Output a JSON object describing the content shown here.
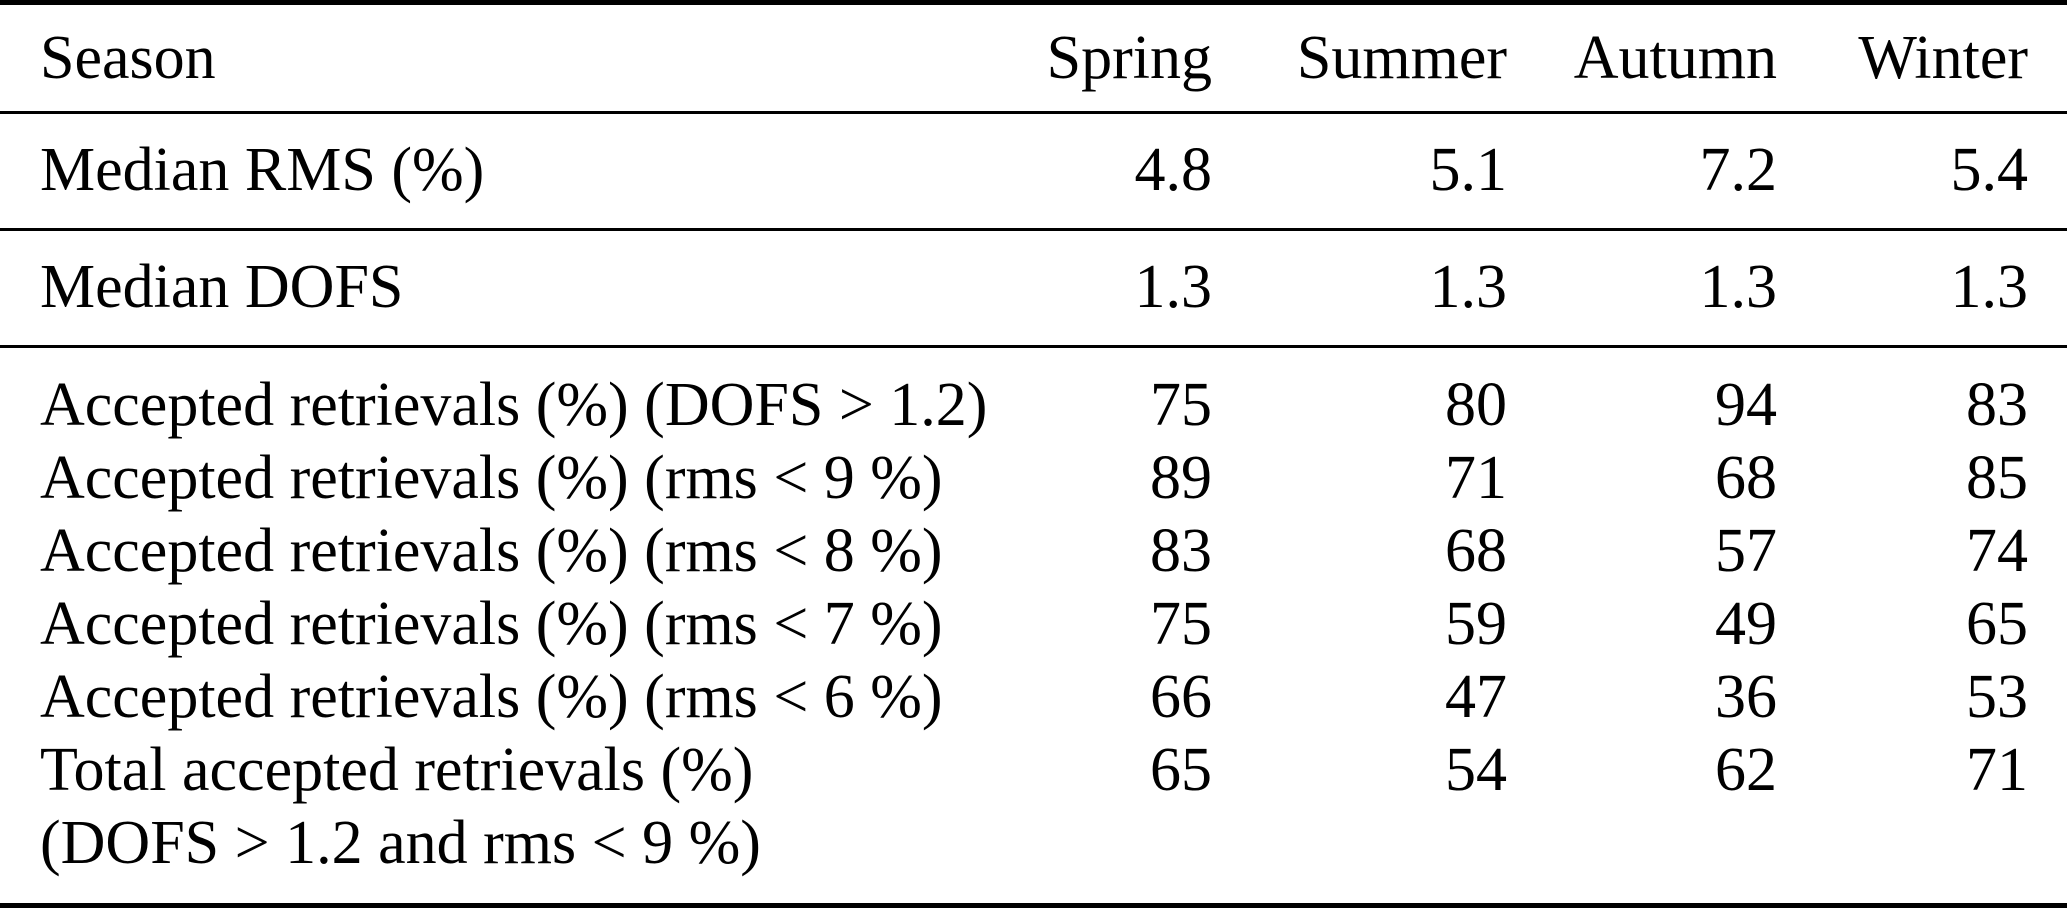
{
  "page": {
    "background_color": "#ffffff",
    "text_color": "#000000",
    "rule_color": "#000000"
  },
  "table": {
    "columns": [
      "Season",
      "Spring",
      "Summer",
      "Autumn",
      "Winter"
    ],
    "sections": [
      {
        "name": "median-rms",
        "rows": [
          {
            "label": "Median RMS (%)",
            "values": [
              "4.8",
              "5.1",
              "7.2",
              "5.4"
            ]
          }
        ]
      },
      {
        "name": "median-dofs",
        "rows": [
          {
            "label": "Median DOFS",
            "values": [
              "1.3",
              "1.3",
              "1.3",
              "1.3"
            ]
          }
        ]
      },
      {
        "name": "accepted-retrievals",
        "rows": [
          {
            "label": "Accepted retrievals (%) (DOFS > 1.2)",
            "values": [
              "75",
              "80",
              "94",
              "83"
            ]
          },
          {
            "label": "Accepted retrievals (%) (rms < 9 %)",
            "values": [
              "89",
              "71",
              "68",
              "85"
            ]
          },
          {
            "label": "Accepted retrievals (%) (rms < 8 %)",
            "values": [
              "83",
              "68",
              "57",
              "74"
            ]
          },
          {
            "label": "Accepted retrievals (%) (rms < 7 %)",
            "values": [
              "75",
              "59",
              "49",
              "65"
            ]
          },
          {
            "label": "Accepted retrievals (%) (rms < 6 %)",
            "values": [
              "66",
              "47",
              "36",
              "53"
            ]
          },
          {
            "label": "Total accepted retrievals (%)",
            "label_line2": "(DOFS > 1.2 and rms < 9 %)",
            "values": [
              "65",
              "54",
              "62",
              "71"
            ]
          }
        ]
      }
    ]
  }
}
